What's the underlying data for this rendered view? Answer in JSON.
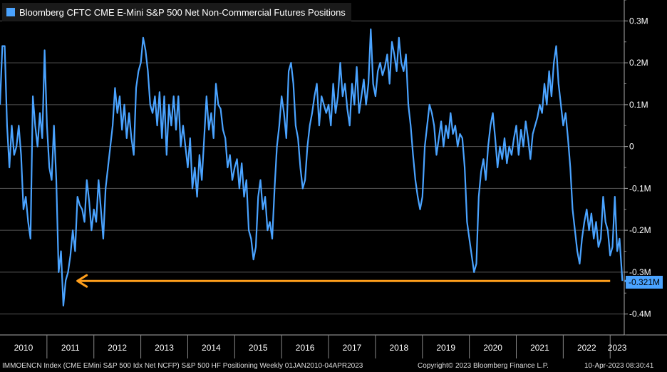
{
  "chart_data": {
    "type": "line",
    "title": "Bloomberg CFTC CME E-Mini S&P 500 Net Non-Commercial Futures Positions",
    "xlabel": "",
    "ylabel": "",
    "ylim": [
      -0.45,
      0.35
    ],
    "y_ticks": [
      {
        "v": 0.3,
        "label": "0.3M"
      },
      {
        "v": 0.2,
        "label": "0.2M"
      },
      {
        "v": 0.1,
        "label": "0.1M"
      },
      {
        "v": 0.0,
        "label": "0"
      },
      {
        "v": -0.1,
        "label": "-0.1M"
      },
      {
        "v": -0.2,
        "label": "-0.2M"
      },
      {
        "v": -0.3,
        "label": "-0.3M"
      },
      {
        "v": -0.4,
        "label": "-0.4M"
      }
    ],
    "x_range": [
      2010.0,
      2023.3
    ],
    "x_ticks": [
      "2010",
      "2011",
      "2012",
      "2013",
      "2014",
      "2015",
      "2016",
      "2017",
      "2018",
      "2019",
      "2020",
      "2021",
      "2022",
      "2023"
    ],
    "series": [
      {
        "name": "Bloomberg CFTC CME E-Mini S&P 500 Net Non-Commercial Futures Positions",
        "color": "#4aa3ff",
        "points": [
          [
            2010.0,
            0.1
          ],
          [
            2010.05,
            0.24
          ],
          [
            2010.1,
            0.24
          ],
          [
            2010.15,
            0.05
          ],
          [
            2010.2,
            -0.05
          ],
          [
            2010.25,
            0.05
          ],
          [
            2010.3,
            -0.02
          ],
          [
            2010.35,
            0.0
          ],
          [
            2010.4,
            0.05
          ],
          [
            2010.45,
            -0.02
          ],
          [
            2010.5,
            -0.15
          ],
          [
            2010.55,
            -0.12
          ],
          [
            2010.6,
            -0.18
          ],
          [
            2010.65,
            -0.22
          ],
          [
            2010.7,
            0.12
          ],
          [
            2010.75,
            0.05
          ],
          [
            2010.8,
            0.0
          ],
          [
            2010.85,
            0.08
          ],
          [
            2010.9,
            0.02
          ],
          [
            2010.95,
            0.23
          ],
          [
            2011.0,
            0.05
          ],
          [
            2011.05,
            -0.05
          ],
          [
            2011.1,
            -0.08
          ],
          [
            2011.15,
            0.05
          ],
          [
            2011.2,
            -0.08
          ],
          [
            2011.25,
            -0.3
          ],
          [
            2011.3,
            -0.25
          ],
          [
            2011.35,
            -0.38
          ],
          [
            2011.4,
            -0.32
          ],
          [
            2011.45,
            -0.3
          ],
          [
            2011.5,
            -0.26
          ],
          [
            2011.55,
            -0.2
          ],
          [
            2011.6,
            -0.25
          ],
          [
            2011.65,
            -0.12
          ],
          [
            2011.7,
            -0.14
          ],
          [
            2011.75,
            -0.15
          ],
          [
            2011.8,
            -0.18
          ],
          [
            2011.85,
            -0.08
          ],
          [
            2011.9,
            -0.13
          ],
          [
            2011.95,
            -0.2
          ],
          [
            2012.0,
            -0.15
          ],
          [
            2012.05,
            -0.18
          ],
          [
            2012.1,
            -0.08
          ],
          [
            2012.15,
            -0.15
          ],
          [
            2012.2,
            -0.22
          ],
          [
            2012.25,
            -0.1
          ],
          [
            2012.3,
            -0.05
          ],
          [
            2012.35,
            0.0
          ],
          [
            2012.4,
            0.05
          ],
          [
            2012.45,
            0.14
          ],
          [
            2012.5,
            0.08
          ],
          [
            2012.55,
            0.12
          ],
          [
            2012.6,
            0.04
          ],
          [
            2012.65,
            0.1
          ],
          [
            2012.7,
            0.02
          ],
          [
            2012.75,
            0.08
          ],
          [
            2012.8,
            0.02
          ],
          [
            2012.85,
            -0.02
          ],
          [
            2012.9,
            0.14
          ],
          [
            2012.95,
            0.18
          ],
          [
            2013.0,
            0.2
          ],
          [
            2013.05,
            0.26
          ],
          [
            2013.1,
            0.23
          ],
          [
            2013.15,
            0.18
          ],
          [
            2013.2,
            0.1
          ],
          [
            2013.25,
            0.08
          ],
          [
            2013.3,
            0.12
          ],
          [
            2013.35,
            0.05
          ],
          [
            2013.4,
            0.13
          ],
          [
            2013.45,
            0.02
          ],
          [
            2013.5,
            0.12
          ],
          [
            2013.55,
            -0.02
          ],
          [
            2013.6,
            0.1
          ],
          [
            2013.65,
            0.05
          ],
          [
            2013.7,
            0.12
          ],
          [
            2013.75,
            0.04
          ],
          [
            2013.8,
            0.12
          ],
          [
            2013.85,
            0.0
          ],
          [
            2013.9,
            0.05
          ],
          [
            2013.95,
            0.0
          ],
          [
            2014.0,
            -0.05
          ],
          [
            2014.05,
            0.02
          ],
          [
            2014.1,
            -0.1
          ],
          [
            2014.15,
            -0.05
          ],
          [
            2014.2,
            -0.12
          ],
          [
            2014.25,
            -0.02
          ],
          [
            2014.3,
            -0.08
          ],
          [
            2014.35,
            0.02
          ],
          [
            2014.4,
            0.12
          ],
          [
            2014.45,
            0.04
          ],
          [
            2014.5,
            0.08
          ],
          [
            2014.55,
            0.02
          ],
          [
            2014.6,
            0.15
          ],
          [
            2014.65,
            0.1
          ],
          [
            2014.7,
            0.09
          ],
          [
            2014.75,
            0.04
          ],
          [
            2014.8,
            0.02
          ],
          [
            2014.85,
            -0.05
          ],
          [
            2014.9,
            -0.02
          ],
          [
            2014.95,
            -0.08
          ],
          [
            2015.0,
            -0.05
          ],
          [
            2015.05,
            -0.03
          ],
          [
            2015.1,
            -0.1
          ],
          [
            2015.15,
            -0.04
          ],
          [
            2015.2,
            -0.12
          ],
          [
            2015.25,
            -0.08
          ],
          [
            2015.3,
            -0.2
          ],
          [
            2015.35,
            -0.22
          ],
          [
            2015.4,
            -0.27
          ],
          [
            2015.45,
            -0.24
          ],
          [
            2015.5,
            -0.12
          ],
          [
            2015.55,
            -0.08
          ],
          [
            2015.6,
            -0.15
          ],
          [
            2015.65,
            -0.12
          ],
          [
            2015.7,
            -0.2
          ],
          [
            2015.75,
            -0.18
          ],
          [
            2015.8,
            -0.22
          ],
          [
            2015.85,
            -0.1
          ],
          [
            2015.9,
            0.0
          ],
          [
            2015.95,
            0.05
          ],
          [
            2016.0,
            0.12
          ],
          [
            2016.05,
            0.08
          ],
          [
            2016.1,
            0.02
          ],
          [
            2016.15,
            0.18
          ],
          [
            2016.2,
            0.2
          ],
          [
            2016.25,
            0.15
          ],
          [
            2016.3,
            0.05
          ],
          [
            2016.35,
            0.02
          ],
          [
            2016.4,
            -0.05
          ],
          [
            2016.45,
            -0.1
          ],
          [
            2016.5,
            -0.08
          ],
          [
            2016.55,
            0.0
          ],
          [
            2016.6,
            0.05
          ],
          [
            2016.65,
            0.08
          ],
          [
            2016.7,
            0.12
          ],
          [
            2016.75,
            0.15
          ],
          [
            2016.8,
            0.05
          ],
          [
            2016.85,
            0.12
          ],
          [
            2016.9,
            0.1
          ],
          [
            2016.95,
            0.08
          ],
          [
            2017.0,
            0.1
          ],
          [
            2017.05,
            0.05
          ],
          [
            2017.1,
            0.15
          ],
          [
            2017.15,
            0.08
          ],
          [
            2017.2,
            0.12
          ],
          [
            2017.25,
            0.2
          ],
          [
            2017.3,
            0.12
          ],
          [
            2017.35,
            0.15
          ],
          [
            2017.4,
            0.09
          ],
          [
            2017.45,
            0.05
          ],
          [
            2017.5,
            0.15
          ],
          [
            2017.55,
            0.1
          ],
          [
            2017.6,
            0.19
          ],
          [
            2017.65,
            0.08
          ],
          [
            2017.7,
            0.12
          ],
          [
            2017.75,
            0.16
          ],
          [
            2017.8,
            0.1
          ],
          [
            2017.85,
            0.15
          ],
          [
            2017.9,
            0.28
          ],
          [
            2017.95,
            0.15
          ],
          [
            2018.0,
            0.12
          ],
          [
            2018.05,
            0.18
          ],
          [
            2018.1,
            0.2
          ],
          [
            2018.15,
            0.17
          ],
          [
            2018.2,
            0.19
          ],
          [
            2018.25,
            0.22
          ],
          [
            2018.3,
            0.15
          ],
          [
            2018.35,
            0.25
          ],
          [
            2018.4,
            0.22
          ],
          [
            2018.45,
            0.18
          ],
          [
            2018.5,
            0.26
          ],
          [
            2018.55,
            0.2
          ],
          [
            2018.6,
            0.18
          ],
          [
            2018.65,
            0.22
          ],
          [
            2018.7,
            0.1
          ],
          [
            2018.75,
            0.05
          ],
          [
            2018.8,
            -0.02
          ],
          [
            2018.85,
            -0.08
          ],
          [
            2018.9,
            -0.12
          ],
          [
            2018.95,
            -0.15
          ],
          [
            2019.0,
            -0.12
          ],
          [
            2019.05,
            0.0
          ],
          [
            2019.1,
            0.05
          ],
          [
            2019.15,
            0.1
          ],
          [
            2019.2,
            0.08
          ],
          [
            2019.25,
            0.05
          ],
          [
            2019.3,
            -0.02
          ],
          [
            2019.35,
            0.02
          ],
          [
            2019.4,
            0.06
          ],
          [
            2019.45,
            0.0
          ],
          [
            2019.5,
            0.05
          ],
          [
            2019.55,
            0.02
          ],
          [
            2019.6,
            0.08
          ],
          [
            2019.65,
            0.03
          ],
          [
            2019.7,
            0.05
          ],
          [
            2019.75,
            0.0
          ],
          [
            2019.8,
            0.03
          ],
          [
            2019.85,
            0.02
          ],
          [
            2019.9,
            -0.05
          ],
          [
            2019.95,
            -0.18
          ],
          [
            2020.0,
            -0.22
          ],
          [
            2020.05,
            -0.26
          ],
          [
            2020.1,
            -0.3
          ],
          [
            2020.15,
            -0.28
          ],
          [
            2020.2,
            -0.12
          ],
          [
            2020.25,
            -0.06
          ],
          [
            2020.3,
            -0.03
          ],
          [
            2020.35,
            -0.08
          ],
          [
            2020.4,
            0.0
          ],
          [
            2020.45,
            0.05
          ],
          [
            2020.5,
            0.08
          ],
          [
            2020.55,
            0.02
          ],
          [
            2020.6,
            -0.05
          ],
          [
            2020.65,
            0.0
          ],
          [
            2020.7,
            -0.03
          ],
          [
            2020.75,
            0.02
          ],
          [
            2020.8,
            -0.04
          ],
          [
            2020.85,
            0.0
          ],
          [
            2020.9,
            -0.02
          ],
          [
            2020.95,
            0.02
          ],
          [
            2021.0,
            0.05
          ],
          [
            2021.05,
            -0.02
          ],
          [
            2021.1,
            0.04
          ],
          [
            2021.15,
            0.0
          ],
          [
            2021.2,
            0.06
          ],
          [
            2021.25,
            0.02
          ],
          [
            2021.3,
            -0.03
          ],
          [
            2021.35,
            0.03
          ],
          [
            2021.4,
            0.05
          ],
          [
            2021.45,
            0.07
          ],
          [
            2021.5,
            0.1
          ],
          [
            2021.55,
            0.08
          ],
          [
            2021.6,
            0.15
          ],
          [
            2021.65,
            0.1
          ],
          [
            2021.7,
            0.18
          ],
          [
            2021.75,
            0.12
          ],
          [
            2021.8,
            0.2
          ],
          [
            2021.85,
            0.24
          ],
          [
            2021.9,
            0.15
          ],
          [
            2021.95,
            0.1
          ],
          [
            2022.0,
            0.05
          ],
          [
            2022.05,
            0.08
          ],
          [
            2022.1,
            0.02
          ],
          [
            2022.15,
            -0.05
          ],
          [
            2022.2,
            -0.15
          ],
          [
            2022.25,
            -0.2
          ],
          [
            2022.3,
            -0.25
          ],
          [
            2022.35,
            -0.28
          ],
          [
            2022.4,
            -0.22
          ],
          [
            2022.45,
            -0.18
          ],
          [
            2022.5,
            -0.15
          ],
          [
            2022.55,
            -0.2
          ],
          [
            2022.6,
            -0.16
          ],
          [
            2022.65,
            -0.22
          ],
          [
            2022.7,
            -0.18
          ],
          [
            2022.75,
            -0.24
          ],
          [
            2022.8,
            -0.22
          ],
          [
            2022.85,
            -0.12
          ],
          [
            2022.9,
            -0.18
          ],
          [
            2022.95,
            -0.2
          ],
          [
            2023.0,
            -0.26
          ],
          [
            2023.05,
            -0.24
          ],
          [
            2023.1,
            -0.12
          ],
          [
            2023.15,
            -0.25
          ],
          [
            2023.2,
            -0.22
          ],
          [
            2023.26,
            -0.321
          ]
        ]
      }
    ],
    "last_value": {
      "value": -0.321,
      "label": "-0.321M"
    },
    "annotation": {
      "type": "arrow",
      "color": "#ff9f1c",
      "y": -0.321,
      "from_x": 2023.0,
      "to_x": 2011.65
    }
  },
  "footer": {
    "left": "IMMOENCN Index (CME EMini S&P 500 Idx Net NCFP) S&P 500 HF Positioning  Weekly 01JAN2010-04APR2023",
    "center": "Copyright© 2023 Bloomberg Finance L.P.",
    "right": "10-Apr-2023 08:30:41"
  }
}
